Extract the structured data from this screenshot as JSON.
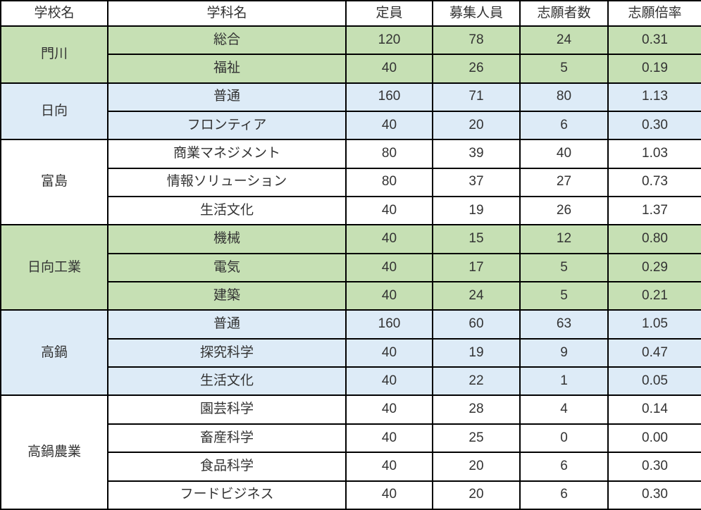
{
  "colors": {
    "green": "#c6e0b4",
    "blue": "#ddebf7",
    "white": "#ffffff",
    "border": "#000000",
    "text": "#333333"
  },
  "table": {
    "headers": [
      "学校名",
      "学科名",
      "定員",
      "募集人員",
      "志願者数",
      "志願倍率"
    ],
    "groups": [
      {
        "school": "門川",
        "color": "green",
        "rows": [
          [
            "総合",
            "120",
            "78",
            "24",
            "0.31"
          ],
          [
            "福祉",
            "40",
            "26",
            "5",
            "0.19"
          ]
        ]
      },
      {
        "school": "日向",
        "color": "blue",
        "rows": [
          [
            "普通",
            "160",
            "71",
            "80",
            "1.13"
          ],
          [
            "フロンティア",
            "40",
            "20",
            "6",
            "0.30"
          ]
        ]
      },
      {
        "school": "富島",
        "color": "white",
        "rows": [
          [
            "商業マネジメント",
            "80",
            "39",
            "40",
            "1.03"
          ],
          [
            "情報ソリューション",
            "80",
            "37",
            "27",
            "0.73"
          ],
          [
            "生活文化",
            "40",
            "19",
            "26",
            "1.37"
          ]
        ]
      },
      {
        "school": "日向工業",
        "color": "green",
        "rows": [
          [
            "機械",
            "40",
            "15",
            "12",
            "0.80"
          ],
          [
            "電気",
            "40",
            "17",
            "5",
            "0.29"
          ],
          [
            "建築",
            "40",
            "24",
            "5",
            "0.21"
          ]
        ]
      },
      {
        "school": "高鍋",
        "color": "blue",
        "rows": [
          [
            "普通",
            "160",
            "60",
            "63",
            "1.05"
          ],
          [
            "探究科学",
            "40",
            "19",
            "9",
            "0.47"
          ],
          [
            "生活文化",
            "40",
            "22",
            "1",
            "0.05"
          ]
        ]
      },
      {
        "school": "高鍋農業",
        "color": "white",
        "rows": [
          [
            "園芸科学",
            "40",
            "28",
            "4",
            "0.14"
          ],
          [
            "畜産科学",
            "40",
            "25",
            "0",
            "0.00"
          ],
          [
            "食品科学",
            "40",
            "20",
            "6",
            "0.30"
          ],
          [
            "フードビジネス",
            "40",
            "20",
            "6",
            "0.30"
          ]
        ]
      }
    ]
  }
}
